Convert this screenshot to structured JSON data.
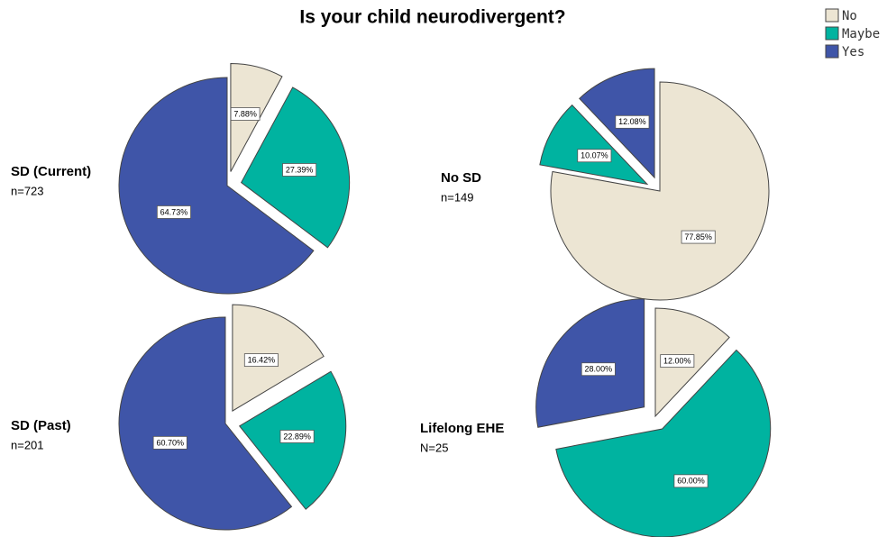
{
  "title": "Is your child neurodivergent?",
  "legend": {
    "position": "upper right"
  },
  "chart_data": [
    {
      "type": "pie",
      "title": "SD (Current)",
      "subtitle": "n=723",
      "categories": [
        "No",
        "Maybe",
        "Yes"
      ],
      "values": [
        7.88,
        27.39,
        64.73
      ],
      "value_labels": [
        "7.88%",
        "27.39%",
        "64.73%"
      ],
      "colors": [
        "#ece5d3",
        "#00b3a0",
        "#3f55a8"
      ],
      "explode": [
        true,
        true,
        false
      ]
    },
    {
      "type": "pie",
      "title": "No SD",
      "subtitle": "n=149",
      "categories": [
        "No",
        "Maybe",
        "Yes"
      ],
      "values": [
        77.85,
        10.07,
        12.08
      ],
      "value_labels": [
        "77.85%",
        "10.07%",
        "12.08%"
      ],
      "colors": [
        "#ece5d3",
        "#00b3a0",
        "#3f55a8"
      ],
      "explode": [
        false,
        true,
        true
      ]
    },
    {
      "type": "pie",
      "title": "SD (Past)",
      "subtitle": "n=201",
      "categories": [
        "No",
        "Maybe",
        "Yes"
      ],
      "values": [
        16.42,
        22.89,
        60.7
      ],
      "value_labels": [
        "16.42%",
        "22.89%",
        "60.70%"
      ],
      "colors": [
        "#ece5d3",
        "#00b3a0",
        "#3f55a8"
      ],
      "explode": [
        true,
        true,
        false
      ]
    },
    {
      "type": "pie",
      "title": "Lifelong EHE",
      "subtitle": "N=25",
      "categories": [
        "No",
        "Maybe",
        "Yes"
      ],
      "values": [
        12.0,
        60.0,
        28.0
      ],
      "value_labels": [
        "12.00%",
        "60.00%",
        "28.00%"
      ],
      "colors": [
        "#ece5d3",
        "#00b3a0",
        "#3f55a8"
      ],
      "explode": [
        false,
        true,
        true
      ]
    }
  ]
}
